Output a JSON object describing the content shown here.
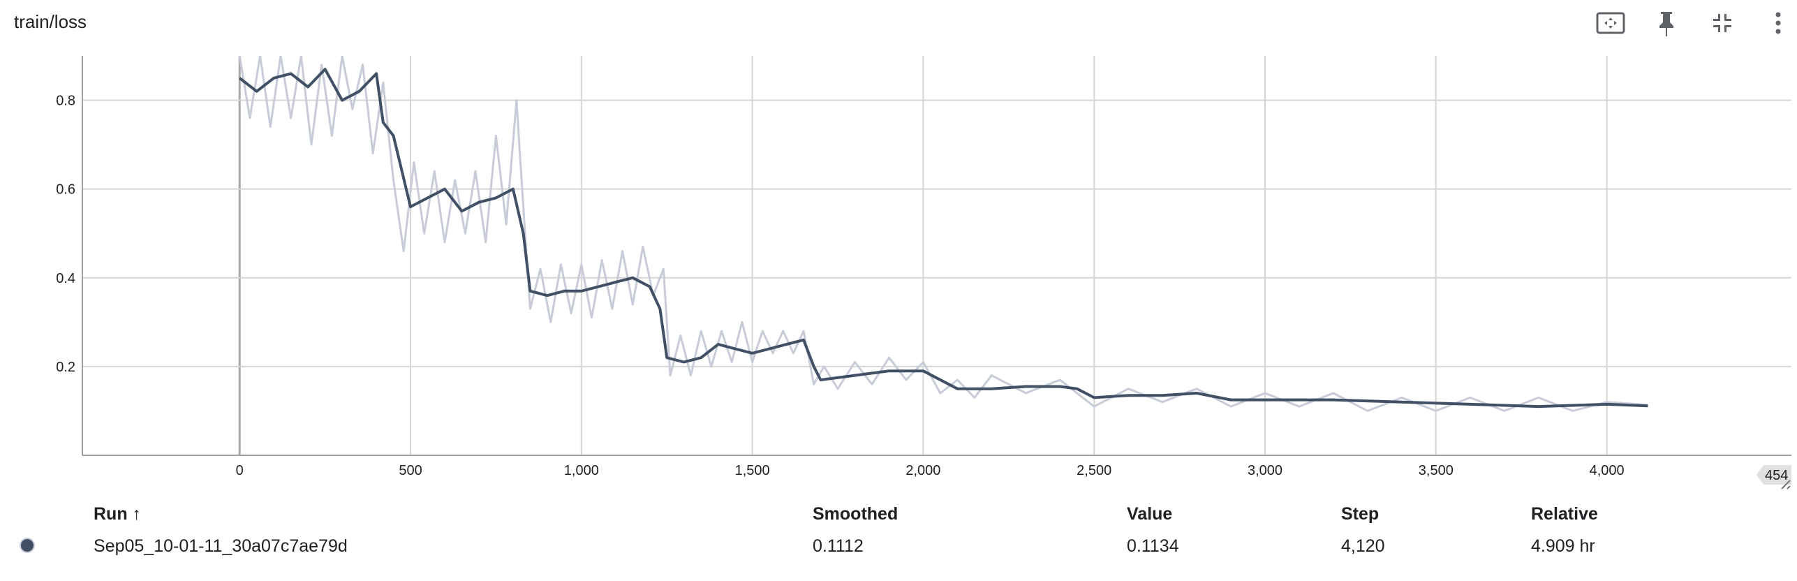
{
  "card": {
    "title": "train/loss"
  },
  "toolbar": {
    "icons": [
      "fit-to-data-icon",
      "pin-icon",
      "collapse-icon",
      "more-vert-icon"
    ]
  },
  "colors": {
    "smoothed": "#425066",
    "raw": "#c7ccd8",
    "grid": "#d6d6d6",
    "axis": "#9e9e9e"
  },
  "chart_data": {
    "type": "line",
    "title": "train/loss",
    "xlabel": "",
    "ylabel": "",
    "xlim": [
      -460,
      4540
    ],
    "ylim": [
      0,
      0.9
    ],
    "x_ticks": [
      0,
      500,
      1000,
      1500,
      2000,
      2500,
      3000,
      3500,
      4000
    ],
    "x_tick_labels": [
      "0",
      "500",
      "1,000",
      "1,500",
      "2,000",
      "2,500",
      "3,000",
      "3,500",
      "4,000"
    ],
    "y_ticks": [
      0.2,
      0.4,
      0.6,
      0.8
    ],
    "y_tick_labels": [
      "0.2",
      "0.4",
      "0.6",
      "0.8"
    ],
    "x_axis_end_label": "454",
    "grid": true,
    "series": [
      {
        "name": "Sep05_10-01-11_30a07c7ae79d",
        "kind": "smoothed",
        "x": [
          0,
          50,
          100,
          150,
          200,
          250,
          300,
          350,
          400,
          420,
          450,
          500,
          550,
          600,
          650,
          700,
          750,
          800,
          830,
          850,
          900,
          950,
          1000,
          1050,
          1100,
          1150,
          1200,
          1230,
          1250,
          1300,
          1350,
          1400,
          1450,
          1500,
          1550,
          1600,
          1650,
          1680,
          1700,
          1800,
          1900,
          2000,
          2100,
          2200,
          2300,
          2400,
          2450,
          2500,
          2600,
          2700,
          2800,
          2900,
          3000,
          3200,
          3400,
          3600,
          3800,
          4000,
          4120
        ],
        "y": [
          0.85,
          0.82,
          0.85,
          0.86,
          0.83,
          0.87,
          0.8,
          0.82,
          0.86,
          0.75,
          0.72,
          0.56,
          0.58,
          0.6,
          0.55,
          0.57,
          0.58,
          0.6,
          0.5,
          0.37,
          0.36,
          0.37,
          0.37,
          0.38,
          0.39,
          0.4,
          0.38,
          0.33,
          0.22,
          0.21,
          0.22,
          0.25,
          0.24,
          0.23,
          0.24,
          0.25,
          0.26,
          0.2,
          0.17,
          0.18,
          0.19,
          0.19,
          0.15,
          0.15,
          0.155,
          0.155,
          0.15,
          0.13,
          0.135,
          0.135,
          0.14,
          0.125,
          0.125,
          0.125,
          0.12,
          0.115,
          0.11,
          0.115,
          0.1112
        ]
      },
      {
        "name": "Sep05_10-01-11_30a07c7ae79d (raw)",
        "kind": "raw",
        "x": [
          0,
          30,
          60,
          90,
          120,
          150,
          180,
          210,
          240,
          270,
          300,
          330,
          360,
          390,
          420,
          450,
          480,
          510,
          540,
          570,
          600,
          630,
          660,
          690,
          720,
          750,
          780,
          810,
          830,
          850,
          880,
          910,
          940,
          970,
          1000,
          1030,
          1060,
          1090,
          1120,
          1150,
          1180,
          1210,
          1240,
          1260,
          1290,
          1320,
          1350,
          1380,
          1410,
          1440,
          1470,
          1500,
          1530,
          1560,
          1590,
          1620,
          1650,
          1680,
          1710,
          1750,
          1800,
          1850,
          1900,
          1950,
          2000,
          2050,
          2100,
          2150,
          2200,
          2300,
          2400,
          2500,
          2600,
          2700,
          2800,
          2900,
          3000,
          3100,
          3200,
          3300,
          3400,
          3500,
          3600,
          3700,
          3800,
          3900,
          4000,
          4120
        ],
        "y": [
          0.9,
          0.76,
          0.9,
          0.74,
          0.9,
          0.76,
          0.9,
          0.7,
          0.88,
          0.72,
          0.9,
          0.78,
          0.88,
          0.68,
          0.84,
          0.62,
          0.46,
          0.66,
          0.5,
          0.64,
          0.48,
          0.62,
          0.5,
          0.64,
          0.48,
          0.72,
          0.52,
          0.8,
          0.56,
          0.33,
          0.42,
          0.3,
          0.43,
          0.32,
          0.43,
          0.31,
          0.44,
          0.33,
          0.46,
          0.34,
          0.47,
          0.36,
          0.42,
          0.18,
          0.27,
          0.18,
          0.28,
          0.2,
          0.28,
          0.21,
          0.3,
          0.21,
          0.28,
          0.23,
          0.28,
          0.23,
          0.28,
          0.16,
          0.2,
          0.15,
          0.21,
          0.16,
          0.22,
          0.17,
          0.21,
          0.14,
          0.17,
          0.13,
          0.18,
          0.14,
          0.17,
          0.11,
          0.15,
          0.12,
          0.15,
          0.11,
          0.14,
          0.11,
          0.14,
          0.1,
          0.13,
          0.1,
          0.13,
          0.1,
          0.13,
          0.1,
          0.12,
          0.1134
        ]
      }
    ]
  },
  "table": {
    "headers": {
      "run": "Run ↑",
      "smoothed": "Smoothed",
      "value": "Value",
      "step": "Step",
      "relative": "Relative"
    },
    "rows": [
      {
        "run": "Sep05_10-01-11_30a07c7ae79d",
        "smoothed": "0.1112",
        "value": "0.1134",
        "step": "4,120",
        "relative": "4.909 hr"
      }
    ]
  }
}
